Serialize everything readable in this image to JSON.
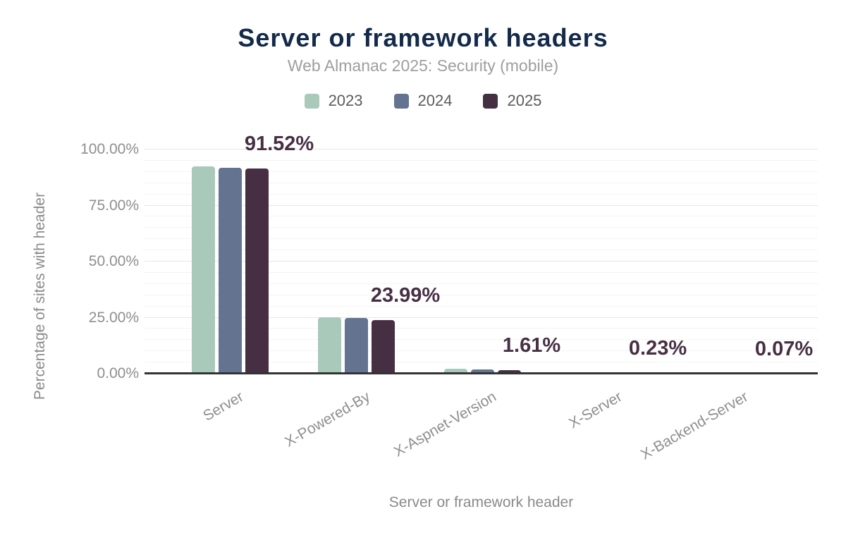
{
  "page": {
    "background": "#ffffff"
  },
  "colors": {
    "title": "#142a4b",
    "subtitle": "#9e9e9e",
    "legend_text": "#5c5c5c",
    "axis_text": "#8f8f8f",
    "axis_title": "#8a8a8a",
    "annotation": "#472f44",
    "grid_major": "#e6e6e6",
    "grid_minor": "#f4f4f4",
    "axis_line": "#333333"
  },
  "chart_data": {
    "type": "bar",
    "title": "Server or framework headers",
    "subtitle": "Web Almanac 2025: Security (mobile)",
    "xlabel": "Server or framework header",
    "ylabel": "Percentage of sites with header",
    "categories": [
      "Server",
      "X-Powered-By",
      "X-Aspnet-Version",
      "X-Server",
      "X-Backend-Server"
    ],
    "series": [
      {
        "name": "2023",
        "color": "#a9caba",
        "values": [
          92.6,
          25.3,
          2.3,
          0.3,
          0.1
        ]
      },
      {
        "name": "2024",
        "color": "#637390",
        "values": [
          91.9,
          24.7,
          1.85,
          0.26,
          0.08
        ]
      },
      {
        "name": "2025",
        "color": "#472f43",
        "values": [
          91.52,
          23.99,
          1.61,
          0.23,
          0.07
        ]
      }
    ],
    "annotations": [
      "91.52%",
      "23.99%",
      "1.61%",
      "0.23%",
      "0.07%"
    ],
    "annotation_series": "2025",
    "y_ticks": [
      {
        "label": "0.00%",
        "value": 0
      },
      {
        "label": "25.00%",
        "value": 25
      },
      {
        "label": "50.00%",
        "value": 50
      },
      {
        "label": "75.00%",
        "value": 75
      },
      {
        "label": "100.00%",
        "value": 100
      }
    ],
    "ylim": [
      0,
      100
    ],
    "grid": {
      "major_step": 25,
      "minor_step": 5
    },
    "legend_position": "top"
  }
}
